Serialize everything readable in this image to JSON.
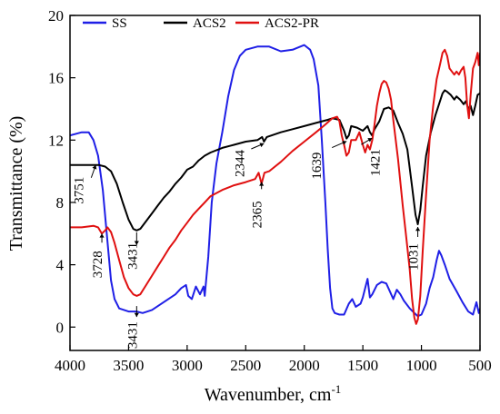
{
  "chart_data": {
    "type": "line",
    "xlabel": "Wavenumber, cm",
    "xlabel_sup": "-1",
    "ylabel": "Transmittance (%)",
    "xlim": [
      4000,
      500
    ],
    "ylim": [
      -1.5,
      20
    ],
    "x_reversed": true,
    "grid": false,
    "legend_position": "top-left",
    "x_ticks": [
      4000,
      3500,
      3000,
      2500,
      2000,
      1500,
      1000,
      500
    ],
    "y_ticks": [
      0,
      4,
      8,
      12,
      16,
      20
    ],
    "series": [
      {
        "name": "SS",
        "color": "#1f1fe6",
        "points": [
          [
            4000,
            12.3
          ],
          [
            3900,
            12.5
          ],
          [
            3840,
            12.5
          ],
          [
            3800,
            12.0
          ],
          [
            3760,
            11.0
          ],
          [
            3720,
            8.8
          ],
          [
            3680,
            5.5
          ],
          [
            3650,
            3.0
          ],
          [
            3620,
            1.8
          ],
          [
            3580,
            1.2
          ],
          [
            3500,
            1.0
          ],
          [
            3431,
            1.0
          ],
          [
            3380,
            0.9
          ],
          [
            3300,
            1.1
          ],
          [
            3200,
            1.6
          ],
          [
            3100,
            2.1
          ],
          [
            3050,
            2.5
          ],
          [
            3010,
            2.7
          ],
          [
            2990,
            2.0
          ],
          [
            2960,
            1.8
          ],
          [
            2925,
            2.6
          ],
          [
            2890,
            2.1
          ],
          [
            2860,
            2.6
          ],
          [
            2850,
            2.0
          ],
          [
            2820,
            4.5
          ],
          [
            2790,
            8.0
          ],
          [
            2750,
            10.5
          ],
          [
            2700,
            12.5
          ],
          [
            2650,
            14.8
          ],
          [
            2600,
            16.5
          ],
          [
            2550,
            17.4
          ],
          [
            2500,
            17.8
          ],
          [
            2400,
            18.0
          ],
          [
            2300,
            18.0
          ],
          [
            2200,
            17.7
          ],
          [
            2100,
            17.8
          ],
          [
            2000,
            18.1
          ],
          [
            1950,
            17.8
          ],
          [
            1920,
            17.2
          ],
          [
            1880,
            15.5
          ],
          [
            1850,
            12.0
          ],
          [
            1820,
            8.0
          ],
          [
            1800,
            5.0
          ],
          [
            1780,
            2.5
          ],
          [
            1760,
            1.2
          ],
          [
            1740,
            0.9
          ],
          [
            1700,
            0.8
          ],
          [
            1660,
            0.8
          ],
          [
            1620,
            1.5
          ],
          [
            1590,
            1.8
          ],
          [
            1560,
            1.3
          ],
          [
            1520,
            1.5
          ],
          [
            1500,
            1.9
          ],
          [
            1480,
            2.5
          ],
          [
            1460,
            3.1
          ],
          [
            1440,
            1.9
          ],
          [
            1420,
            2.1
          ],
          [
            1380,
            2.7
          ],
          [
            1340,
            2.9
          ],
          [
            1300,
            2.8
          ],
          [
            1270,
            2.3
          ],
          [
            1240,
            1.8
          ],
          [
            1210,
            2.4
          ],
          [
            1180,
            2.1
          ],
          [
            1150,
            1.7
          ],
          [
            1100,
            1.2
          ],
          [
            1060,
            0.9
          ],
          [
            1031,
            0.7
          ],
          [
            1000,
            0.8
          ],
          [
            960,
            1.5
          ],
          [
            930,
            2.5
          ],
          [
            900,
            3.2
          ],
          [
            870,
            4.3
          ],
          [
            850,
            4.9
          ],
          [
            830,
            4.6
          ],
          [
            800,
            4.0
          ],
          [
            760,
            3.1
          ],
          [
            700,
            2.3
          ],
          [
            650,
            1.6
          ],
          [
            600,
            1.0
          ],
          [
            560,
            0.8
          ],
          [
            530,
            1.6
          ],
          [
            510,
            0.9
          ],
          [
            500,
            1.2
          ]
        ]
      },
      {
        "name": "ACS2",
        "color": "#000000",
        "points": [
          [
            4000,
            10.4
          ],
          [
            3900,
            10.4
          ],
          [
            3800,
            10.4
          ],
          [
            3751,
            10.4
          ],
          [
            3700,
            10.3
          ],
          [
            3650,
            10.0
          ],
          [
            3600,
            9.2
          ],
          [
            3550,
            8.0
          ],
          [
            3500,
            6.9
          ],
          [
            3460,
            6.3
          ],
          [
            3431,
            6.2
          ],
          [
            3400,
            6.3
          ],
          [
            3350,
            6.8
          ],
          [
            3300,
            7.3
          ],
          [
            3250,
            7.8
          ],
          [
            3200,
            8.3
          ],
          [
            3150,
            8.7
          ],
          [
            3100,
            9.2
          ],
          [
            3050,
            9.6
          ],
          [
            3000,
            10.1
          ],
          [
            2950,
            10.3
          ],
          [
            2900,
            10.7
          ],
          [
            2850,
            11.0
          ],
          [
            2800,
            11.2
          ],
          [
            2700,
            11.5
          ],
          [
            2600,
            11.7
          ],
          [
            2500,
            11.9
          ],
          [
            2400,
            12.0
          ],
          [
            2360,
            12.2
          ],
          [
            2344,
            11.9
          ],
          [
            2320,
            12.2
          ],
          [
            2200,
            12.5
          ],
          [
            2100,
            12.7
          ],
          [
            2000,
            12.9
          ],
          [
            1900,
            13.1
          ],
          [
            1800,
            13.3
          ],
          [
            1760,
            13.4
          ],
          [
            1700,
            13.3
          ],
          [
            1660,
            12.6
          ],
          [
            1639,
            12.1
          ],
          [
            1620,
            12.3
          ],
          [
            1600,
            12.9
          ],
          [
            1550,
            12.8
          ],
          [
            1500,
            12.6
          ],
          [
            1460,
            12.9
          ],
          [
            1440,
            12.5
          ],
          [
            1421,
            12.3
          ],
          [
            1400,
            12.7
          ],
          [
            1360,
            13.2
          ],
          [
            1320,
            14.0
          ],
          [
            1280,
            14.1
          ],
          [
            1240,
            13.9
          ],
          [
            1200,
            13.1
          ],
          [
            1160,
            12.4
          ],
          [
            1120,
            11.4
          ],
          [
            1080,
            9.0
          ],
          [
            1050,
            7.2
          ],
          [
            1031,
            6.6
          ],
          [
            1010,
            7.5
          ],
          [
            990,
            9.0
          ],
          [
            960,
            11.0
          ],
          [
            920,
            12.5
          ],
          [
            880,
            13.6
          ],
          [
            850,
            14.3
          ],
          [
            820,
            15.0
          ],
          [
            800,
            15.2
          ],
          [
            780,
            15.1
          ],
          [
            750,
            14.9
          ],
          [
            720,
            14.6
          ],
          [
            700,
            14.8
          ],
          [
            670,
            14.6
          ],
          [
            640,
            14.3
          ],
          [
            620,
            14.5
          ],
          [
            600,
            14.0
          ],
          [
            580,
            14.2
          ],
          [
            560,
            13.6
          ],
          [
            540,
            14.2
          ],
          [
            520,
            14.9
          ],
          [
            500,
            15.0
          ]
        ]
      },
      {
        "name": "ACS2-PR",
        "color": "#e01010",
        "points": [
          [
            4000,
            6.4
          ],
          [
            3900,
            6.4
          ],
          [
            3800,
            6.5
          ],
          [
            3760,
            6.4
          ],
          [
            3728,
            6.0
          ],
          [
            3700,
            6.2
          ],
          [
            3680,
            6.4
          ],
          [
            3650,
            6.1
          ],
          [
            3620,
            5.4
          ],
          [
            3580,
            4.3
          ],
          [
            3540,
            3.2
          ],
          [
            3500,
            2.5
          ],
          [
            3460,
            2.1
          ],
          [
            3431,
            2.0
          ],
          [
            3400,
            2.1
          ],
          [
            3350,
            2.7
          ],
          [
            3300,
            3.3
          ],
          [
            3250,
            3.9
          ],
          [
            3200,
            4.5
          ],
          [
            3150,
            5.1
          ],
          [
            3100,
            5.6
          ],
          [
            3050,
            6.2
          ],
          [
            3000,
            6.7
          ],
          [
            2950,
            7.2
          ],
          [
            2900,
            7.6
          ],
          [
            2850,
            8.0
          ],
          [
            2800,
            8.4
          ],
          [
            2700,
            8.8
          ],
          [
            2600,
            9.1
          ],
          [
            2500,
            9.3
          ],
          [
            2420,
            9.5
          ],
          [
            2390,
            9.9
          ],
          [
            2365,
            9.2
          ],
          [
            2340,
            9.9
          ],
          [
            2300,
            10.0
          ],
          [
            2200,
            10.6
          ],
          [
            2100,
            11.3
          ],
          [
            2000,
            11.9
          ],
          [
            1900,
            12.5
          ],
          [
            1820,
            13.0
          ],
          [
            1760,
            13.4
          ],
          [
            1720,
            13.5
          ],
          [
            1700,
            13.2
          ],
          [
            1680,
            12.3
          ],
          [
            1660,
            11.7
          ],
          [
            1640,
            11.0
          ],
          [
            1620,
            11.2
          ],
          [
            1600,
            12.0
          ],
          [
            1560,
            12.0
          ],
          [
            1530,
            12.5
          ],
          [
            1500,
            11.7
          ],
          [
            1480,
            11.2
          ],
          [
            1460,
            11.7
          ],
          [
            1440,
            11.4
          ],
          [
            1420,
            12.0
          ],
          [
            1400,
            13.0
          ],
          [
            1380,
            14.2
          ],
          [
            1360,
            15.0
          ],
          [
            1340,
            15.6
          ],
          [
            1320,
            15.8
          ],
          [
            1300,
            15.7
          ],
          [
            1280,
            15.3
          ],
          [
            1260,
            14.6
          ],
          [
            1240,
            13.3
          ],
          [
            1200,
            10.8
          ],
          [
            1160,
            7.8
          ],
          [
            1130,
            5.8
          ],
          [
            1100,
            3.7
          ],
          [
            1080,
            1.8
          ],
          [
            1060,
            0.6
          ],
          [
            1045,
            0.2
          ],
          [
            1030,
            0.5
          ],
          [
            1010,
            2.0
          ],
          [
            990,
            4.8
          ],
          [
            960,
            8.5
          ],
          [
            930,
            12.0
          ],
          [
            900,
            14.2
          ],
          [
            870,
            15.9
          ],
          [
            840,
            16.9
          ],
          [
            820,
            17.6
          ],
          [
            800,
            17.8
          ],
          [
            780,
            17.4
          ],
          [
            760,
            16.6
          ],
          [
            740,
            16.4
          ],
          [
            720,
            16.2
          ],
          [
            700,
            16.4
          ],
          [
            680,
            16.2
          ],
          [
            660,
            16.5
          ],
          [
            640,
            16.7
          ],
          [
            625,
            16.0
          ],
          [
            610,
            14.3
          ],
          [
            595,
            13.4
          ],
          [
            580,
            14.9
          ],
          [
            560,
            16.6
          ],
          [
            540,
            17.0
          ],
          [
            520,
            17.6
          ],
          [
            510,
            16.8
          ],
          [
            500,
            17.6
          ]
        ]
      }
    ],
    "annotations": [
      {
        "label": "3751",
        "x": 3780,
        "y": 10.4,
        "dir": "down",
        "series": "ACS2"
      },
      {
        "label": "3728",
        "x": 3728,
        "y": 6.0,
        "dir": "down",
        "series": "ACS2-PR"
      },
      {
        "label": "3431",
        "x": 3431,
        "y": 6.2,
        "dir": "down",
        "series": "ACS2"
      },
      {
        "label": "3431",
        "x": 3431,
        "y": 1.0,
        "dir": "down",
        "series": "SS"
      },
      {
        "label": "2344",
        "x": 2344,
        "y": 11.9,
        "dir": "up",
        "series": "ACS2"
      },
      {
        "label": "2365",
        "x": 2365,
        "y": 9.2,
        "dir": "down",
        "series": "ACS2-PR"
      },
      {
        "label": "1639",
        "x": 1639,
        "y": 12.1,
        "dir": "down",
        "series": "ACS2"
      },
      {
        "label": "1421",
        "x": 1421,
        "y": 12.3,
        "dir": "down",
        "series": "ACS2"
      },
      {
        "label": "1031",
        "x": 1031,
        "y": 6.6,
        "dir": "down",
        "series": "ACS2"
      }
    ]
  }
}
